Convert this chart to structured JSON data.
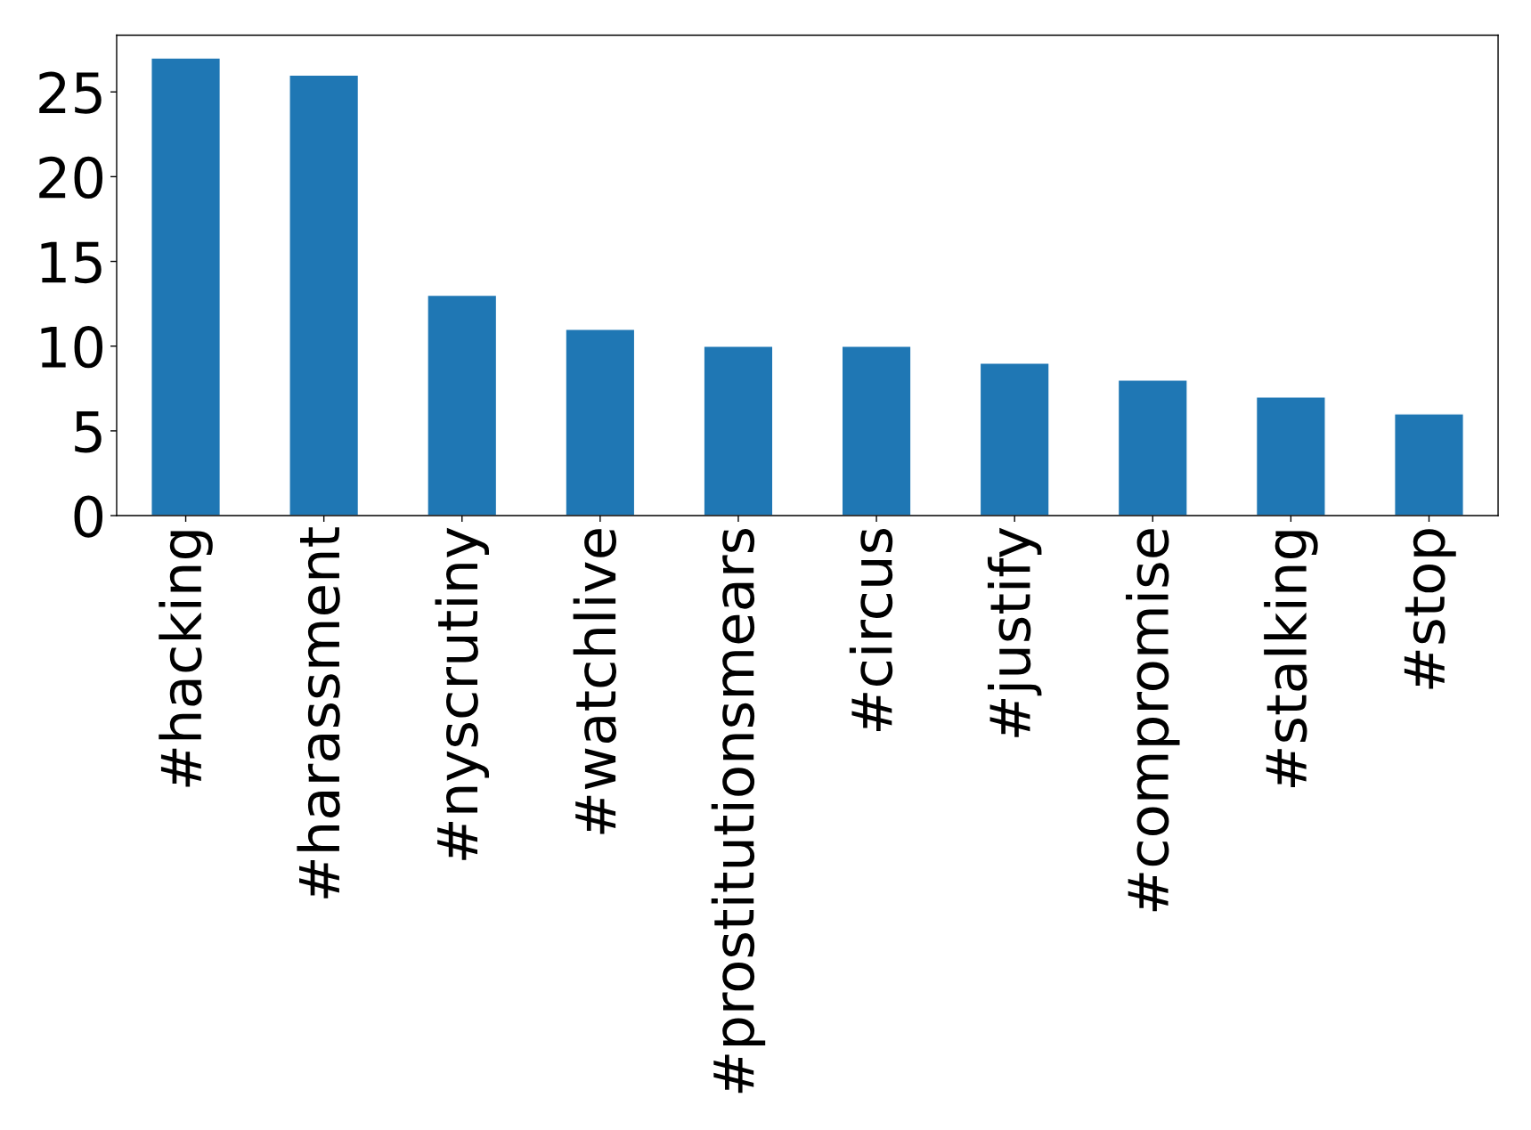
{
  "chart_data": {
    "type": "bar",
    "categories": [
      "#hacking",
      "#harassment",
      "#nyscrutiny",
      "#watchlive",
      "#prostitutionsmears",
      "#circus",
      "#justify",
      "#compromise",
      "#stalking",
      "#stop"
    ],
    "values": [
      27,
      26,
      13,
      11,
      10,
      10,
      9,
      8,
      7,
      6
    ],
    "color": "#1f77b4",
    "ylim": [
      0,
      28.35
    ],
    "yticks": [
      0,
      5,
      10,
      15,
      20,
      25
    ],
    "grid": false,
    "legend": false
  }
}
